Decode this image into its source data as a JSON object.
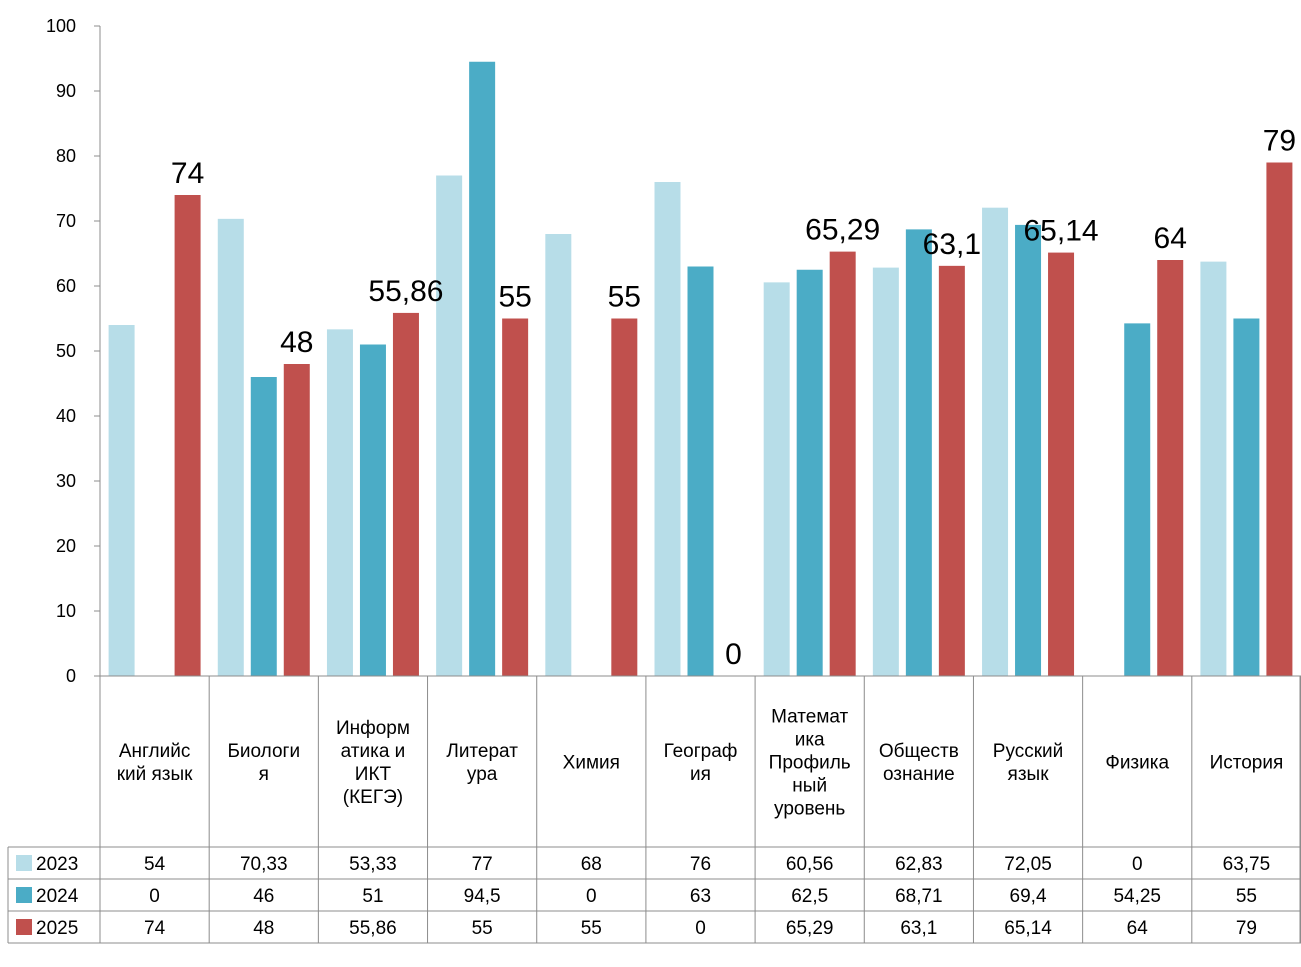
{
  "chart_data": {
    "type": "bar",
    "title": "",
    "xlabel": "",
    "ylabel": "",
    "ylim": [
      0,
      100
    ],
    "yticks": [
      0,
      10,
      20,
      30,
      40,
      50,
      60,
      70,
      80,
      90,
      100
    ],
    "grid": false,
    "legend": "data-table-left",
    "categories": [
      [
        "Английс",
        "кий язык"
      ],
      [
        "Биологи",
        "я"
      ],
      [
        "Информ",
        "атика и",
        "ИКТ",
        "(КЕГЭ)"
      ],
      [
        "Литерат",
        "ура"
      ],
      [
        "Химия"
      ],
      [
        "Географ",
        "ия"
      ],
      [
        "Математ",
        "ика",
        "Профиль",
        "ный",
        "уровень"
      ],
      [
        "Обществ",
        "ознание"
      ],
      [
        "Русский",
        "язык"
      ],
      [
        "Физика"
      ],
      [
        "История"
      ]
    ],
    "series": [
      {
        "name": "2023",
        "color": "#b7dde8",
        "values": [
          54,
          70.33,
          53.33,
          77,
          68,
          76,
          60.56,
          62.83,
          72.05,
          0,
          63.75
        ],
        "labels": [
          "54",
          "70,33",
          "53,33",
          "77",
          "68",
          "76",
          "60,56",
          "62,83",
          "72,05",
          "0",
          "63,75"
        ]
      },
      {
        "name": "2024",
        "color": "#4bacc6",
        "values": [
          0,
          46,
          51,
          94.5,
          0,
          63,
          62.5,
          68.71,
          69.4,
          54.25,
          55
        ],
        "labels": [
          "0",
          "46",
          "51",
          "94,5",
          "0",
          "63",
          "62,5",
          "68,71",
          "69,4",
          "54,25",
          "55"
        ]
      },
      {
        "name": "2025",
        "color": "#c0504d",
        "values": [
          74,
          48,
          55.86,
          55,
          55,
          0,
          65.29,
          63.1,
          65.14,
          64,
          79
        ],
        "labels": [
          "74",
          "48",
          "55,86",
          "55",
          "55",
          "0",
          "65,29",
          "63,1",
          "65,14",
          "64",
          "79"
        ]
      }
    ]
  }
}
